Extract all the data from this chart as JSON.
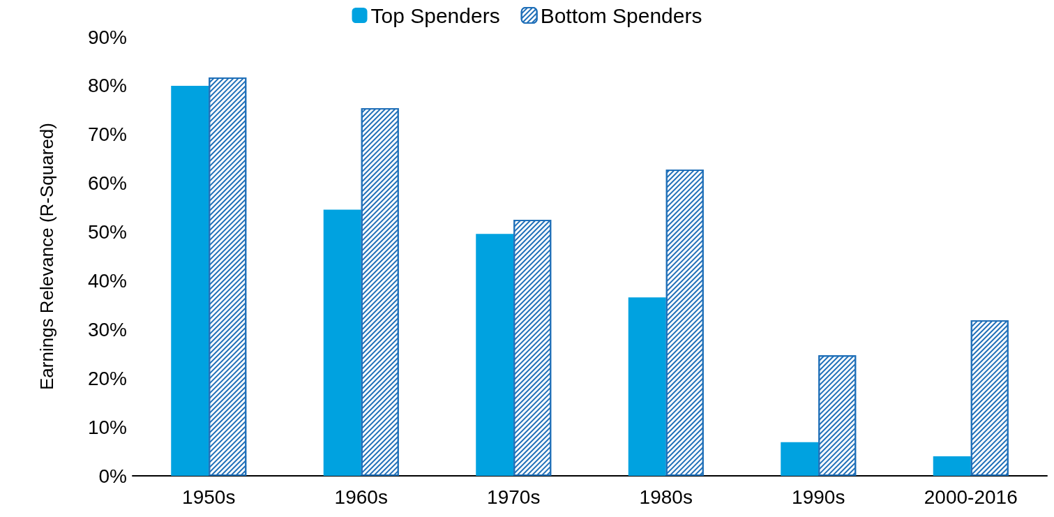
{
  "chart_data": {
    "type": "bar",
    "ylabel": "Earnings Relevance (R-Squared)",
    "categories": [
      "1950s",
      "1960s",
      "1970s",
      "1980s",
      "1990s",
      "2000-2016"
    ],
    "series": [
      {
        "name": "Top Spenders",
        "color": "#00a2e0",
        "values": [
          80,
          54.6,
          49.6,
          36.6,
          6.9,
          4.0
        ]
      },
      {
        "name": "Bottom Spenders",
        "color": "#1f6fb8",
        "values": [
          81.7,
          75.4,
          52.5,
          62.8,
          24.7,
          31.9
        ]
      }
    ],
    "ylim": [
      0,
      90
    ],
    "yticks": [
      {
        "value": 0,
        "label": "0%"
      },
      {
        "value": 10,
        "label": "10%"
      },
      {
        "value": 20,
        "label": "20%"
      },
      {
        "value": 30,
        "label": "30%"
      },
      {
        "value": 40,
        "label": "40%"
      },
      {
        "value": 50,
        "label": "50%"
      },
      {
        "value": 60,
        "label": "60%"
      },
      {
        "value": 70,
        "label": "70%"
      },
      {
        "value": 80,
        "label": "80%"
      },
      {
        "value": 90,
        "label": "90%"
      }
    ],
    "grid": false,
    "legend": "top"
  }
}
